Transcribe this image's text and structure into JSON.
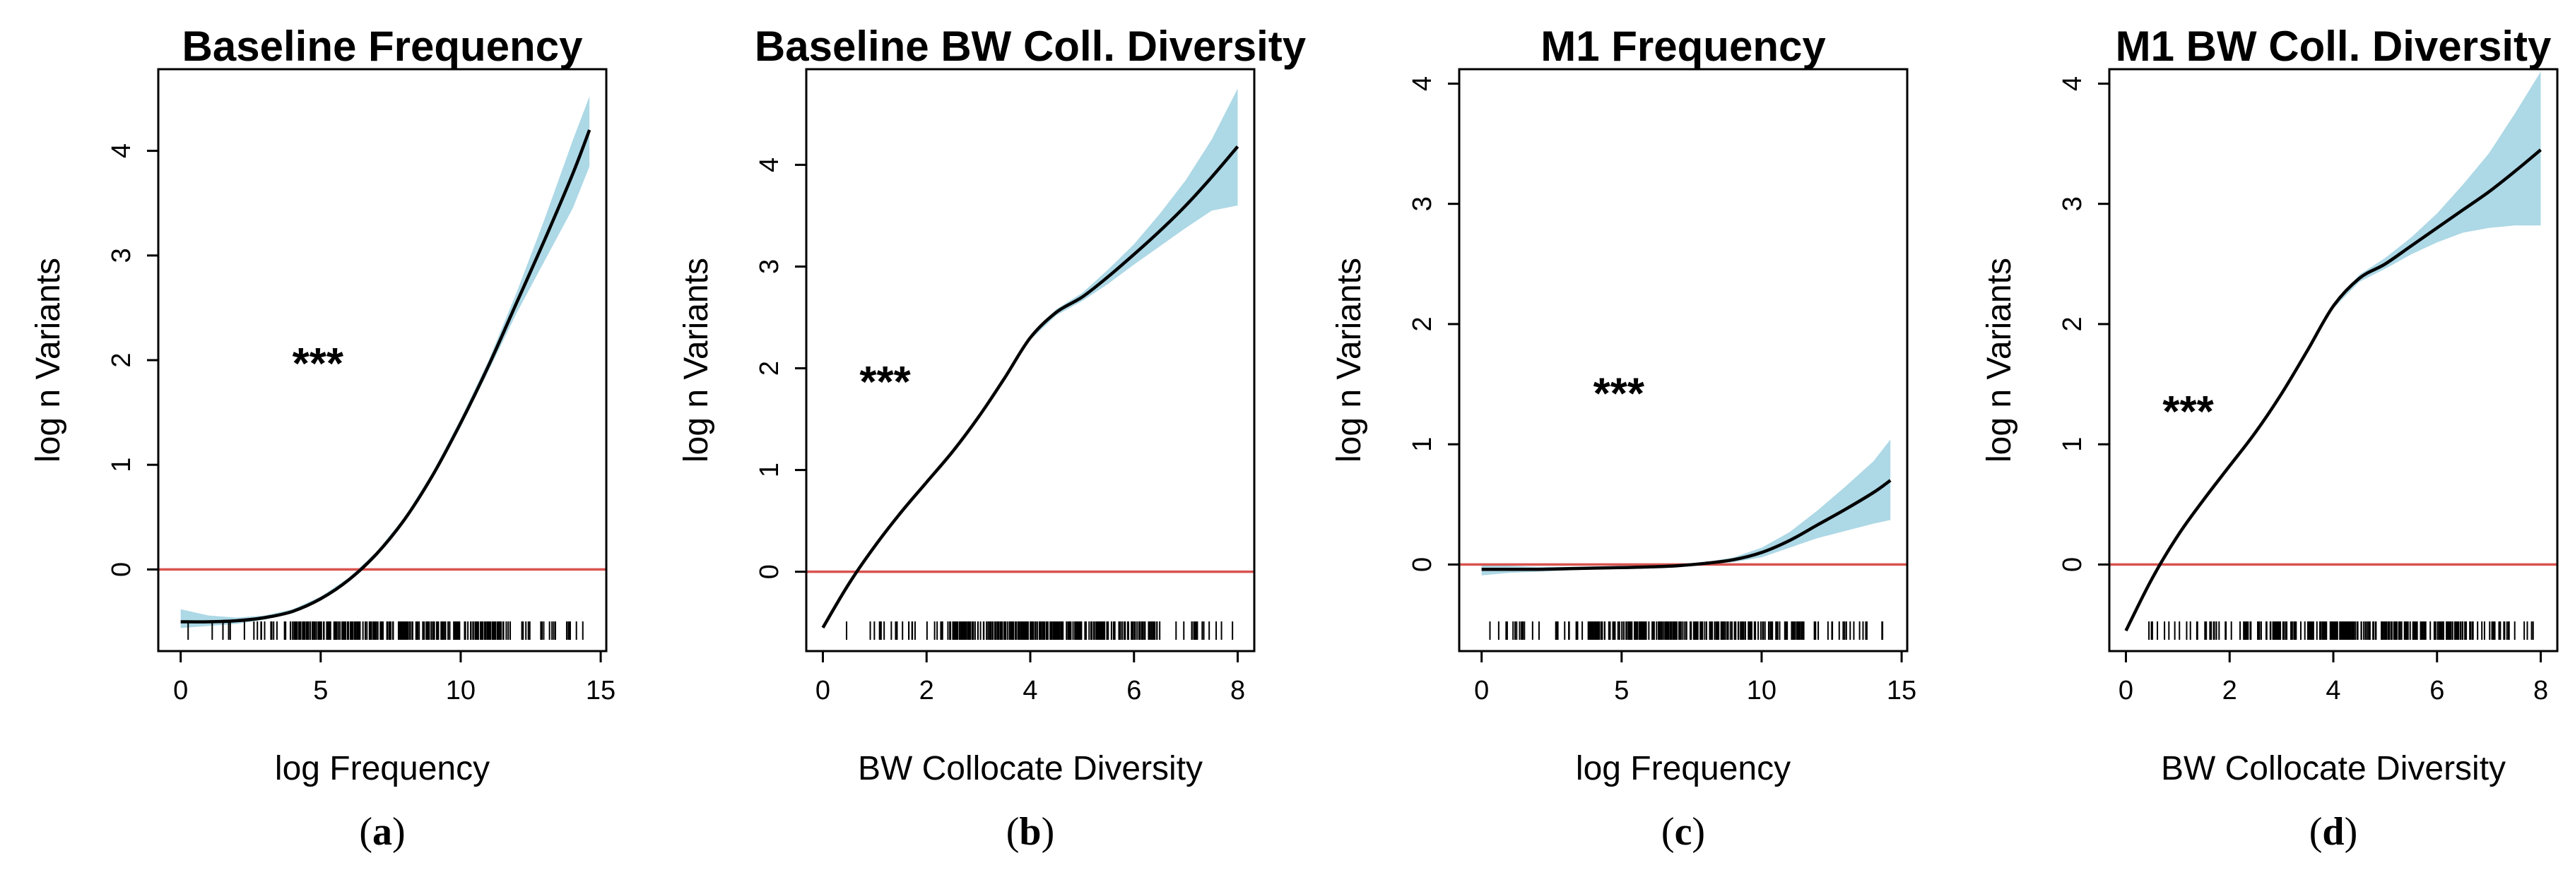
{
  "figure": {
    "colors": {
      "band": "#add8e6",
      "curve": "#000000",
      "refline": "#d9534f",
      "frame": "#000000"
    }
  },
  "chart_data": [
    {
      "id": "a",
      "type": "line",
      "title": "Baseline Frequency",
      "xlabel": "log Frequency",
      "ylabel": "log n Variants",
      "caption": "(a)",
      "caption_letter": "a",
      "significance": "***",
      "xlim": [
        -0.8,
        15.2
      ],
      "ylim": [
        -0.78,
        4.78
      ],
      "xticks": [
        0,
        5,
        10,
        15
      ],
      "yticks": [
        0,
        1,
        2,
        3,
        4
      ],
      "reference_line_y": 0,
      "annotation_at": [
        4.9,
        2.0
      ],
      "x": [
        0,
        1,
        2,
        3,
        4,
        5,
        6,
        7,
        8,
        9,
        10,
        11,
        12,
        13,
        14,
        14.6
      ],
      "y": [
        -0.5,
        -0.5,
        -0.49,
        -0.46,
        -0.4,
        -0.28,
        -0.1,
        0.15,
        0.48,
        0.9,
        1.4,
        1.95,
        2.55,
        3.15,
        3.78,
        4.2
      ],
      "lower": [
        -0.56,
        -0.54,
        -0.52,
        -0.48,
        -0.42,
        -0.3,
        -0.12,
        0.13,
        0.46,
        0.87,
        1.36,
        1.9,
        2.45,
        2.95,
        3.45,
        3.85
      ],
      "upper": [
        -0.38,
        -0.44,
        -0.46,
        -0.44,
        -0.38,
        -0.26,
        -0.08,
        0.17,
        0.5,
        0.93,
        1.44,
        2.0,
        2.65,
        3.35,
        4.1,
        4.52
      ]
    },
    {
      "id": "b",
      "type": "line",
      "title": "Baseline BW Coll. Diversity",
      "xlabel": "BW Collocate Diversity",
      "ylabel": "log n Variants",
      "caption": "(b)",
      "caption_letter": "b",
      "significance": "***",
      "xlim": [
        -0.32,
        8.32
      ],
      "ylim": [
        -0.78,
        4.94
      ],
      "xticks": [
        0,
        2,
        4,
        6,
        8
      ],
      "yticks": [
        0,
        1,
        2,
        3,
        4
      ],
      "reference_line_y": 0,
      "annotation_at": [
        1.2,
        1.9
      ],
      "x": [
        0,
        0.5,
        1,
        1.5,
        2,
        2.5,
        3,
        3.5,
        4,
        4.5,
        5,
        5.5,
        6,
        6.5,
        7,
        7.5,
        8
      ],
      "y": [
        -0.55,
        -0.12,
        0.25,
        0.58,
        0.88,
        1.18,
        1.52,
        1.9,
        2.3,
        2.55,
        2.7,
        2.9,
        3.12,
        3.35,
        3.6,
        3.88,
        4.18
      ],
      "lower": [
        -0.55,
        -0.12,
        0.25,
        0.58,
        0.88,
        1.18,
        1.52,
        1.89,
        2.28,
        2.52,
        2.66,
        2.83,
        3.02,
        3.2,
        3.38,
        3.55,
        3.6
      ],
      "upper": [
        -0.55,
        -0.12,
        0.25,
        0.58,
        0.88,
        1.18,
        1.52,
        1.91,
        2.32,
        2.58,
        2.74,
        2.97,
        3.22,
        3.52,
        3.85,
        4.25,
        4.75
      ]
    },
    {
      "id": "c",
      "type": "line",
      "title": "M1 Frequency",
      "xlabel": "log Frequency",
      "ylabel": "log n Variants",
      "caption": "(c)",
      "caption_letter": "c",
      "significance": "***",
      "xlim": [
        -0.8,
        15.2
      ],
      "ylim": [
        -0.72,
        4.12
      ],
      "xticks": [
        0,
        5,
        10,
        15
      ],
      "yticks": [
        0,
        1,
        2,
        3,
        4
      ],
      "reference_line_y": 0,
      "annotation_at": [
        4.9,
        1.45
      ],
      "x": [
        0,
        1,
        2,
        3,
        4,
        5,
        6,
        7,
        8,
        9,
        10,
        11,
        12,
        13,
        14,
        14.6
      ],
      "y": [
        -0.04,
        -0.04,
        -0.04,
        -0.035,
        -0.03,
        -0.025,
        -0.02,
        -0.01,
        0.01,
        0.04,
        0.1,
        0.2,
        0.33,
        0.46,
        0.6,
        0.7
      ],
      "lower": [
        -0.09,
        -0.07,
        -0.06,
        -0.05,
        -0.04,
        -0.03,
        -0.025,
        -0.015,
        0.0,
        0.02,
        0.06,
        0.14,
        0.22,
        0.28,
        0.34,
        0.37
      ],
      "upper": [
        0.0,
        -0.01,
        -0.02,
        -0.02,
        -0.02,
        -0.02,
        -0.015,
        -0.005,
        0.02,
        0.06,
        0.14,
        0.27,
        0.45,
        0.65,
        0.86,
        1.04
      ]
    },
    {
      "id": "d",
      "type": "line",
      "title": "M1 BW Coll. Diversity",
      "xlabel": "BW Collocate Diversity",
      "ylabel": "log n Variants",
      "caption": "(d)",
      "caption_letter": "d",
      "significance": "***",
      "xlim": [
        -0.32,
        8.32
      ],
      "ylim": [
        -0.72,
        4.12
      ],
      "xticks": [
        0,
        2,
        4,
        6,
        8
      ],
      "yticks": [
        0,
        1,
        2,
        3,
        4
      ],
      "reference_line_y": 0,
      "annotation_at": [
        1.2,
        1.3
      ],
      "x": [
        0,
        0.5,
        1,
        1.5,
        2,
        2.5,
        3,
        3.5,
        4,
        4.5,
        5,
        5.5,
        6,
        6.5,
        7,
        7.5,
        8
      ],
      "y": [
        -0.55,
        -0.12,
        0.24,
        0.54,
        0.82,
        1.1,
        1.42,
        1.78,
        2.15,
        2.38,
        2.5,
        2.65,
        2.8,
        2.95,
        3.1,
        3.27,
        3.45
      ],
      "lower": [
        -0.55,
        -0.12,
        0.24,
        0.54,
        0.82,
        1.1,
        1.42,
        1.77,
        2.13,
        2.35,
        2.46,
        2.58,
        2.68,
        2.76,
        2.8,
        2.82,
        2.82
      ],
      "upper": [
        -0.55,
        -0.12,
        0.24,
        0.54,
        0.82,
        1.1,
        1.42,
        1.79,
        2.17,
        2.41,
        2.55,
        2.72,
        2.92,
        3.16,
        3.42,
        3.75,
        4.1
      ]
    }
  ]
}
